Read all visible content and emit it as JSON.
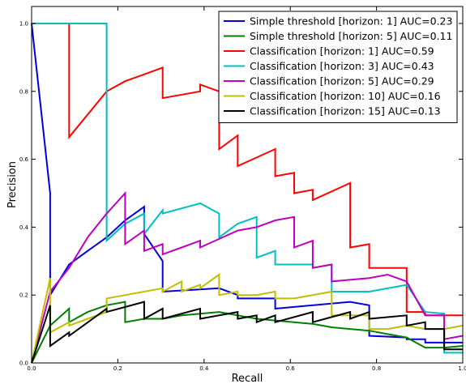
{
  "chart_data": {
    "type": "line",
    "title": "",
    "xlabel": "Recall",
    "ylabel": "Precision",
    "xlim": [
      0,
      1
    ],
    "ylim": [
      0,
      1.05
    ],
    "xticks": [
      "0.0",
      "0.2",
      "0.4",
      "0.6",
      "0.8",
      "1.0"
    ],
    "yticks": [
      "0.0",
      "0.2",
      "0.4",
      "0.6",
      "0.8",
      "1.0"
    ],
    "xtick_values": [
      0,
      0.2,
      0.4,
      0.6,
      0.8,
      1.0
    ],
    "ytick_values": [
      0,
      0.2,
      0.4,
      0.6,
      0.8,
      1.0
    ],
    "grid": false,
    "legend_position": "top-right",
    "series": [
      {
        "name": "Simple threshold [horizon: 1] AUC=0.23",
        "color": "#0000dd",
        "x": [
          0.0,
          0.043,
          0.043,
          0.087,
          0.13,
          0.174,
          0.217,
          0.261,
          0.261,
          0.304,
          0.304,
          0.435,
          0.478,
          0.478,
          0.565,
          0.565,
          0.739,
          0.783,
          0.783,
          0.87,
          0.87,
          0.913,
          0.913,
          1.0
        ],
        "y": [
          1.0,
          0.5,
          0.2,
          0.29,
          0.33,
          0.37,
          0.42,
          0.46,
          0.38,
          0.3,
          0.21,
          0.22,
          0.2,
          0.19,
          0.19,
          0.16,
          0.18,
          0.17,
          0.08,
          0.075,
          0.07,
          0.07,
          0.06,
          0.06
        ]
      },
      {
        "name": "Simple threshold [horizon: 5] AUC=0.11",
        "color": "#007f00",
        "x": [
          0.0,
          0.043,
          0.087,
          0.087,
          0.13,
          0.174,
          0.217,
          0.217,
          0.261,
          0.304,
          0.348,
          0.391,
          0.435,
          0.478,
          0.522,
          0.565,
          0.609,
          0.652,
          0.696,
          0.739,
          0.783,
          0.826,
          0.87,
          0.913,
          0.957,
          1.0
        ],
        "y": [
          0.0,
          0.11,
          0.16,
          0.12,
          0.15,
          0.17,
          0.18,
          0.12,
          0.13,
          0.13,
          0.14,
          0.145,
          0.15,
          0.14,
          0.13,
          0.125,
          0.12,
          0.115,
          0.105,
          0.1,
          0.095,
          0.085,
          0.075,
          0.045,
          0.045,
          0.05
        ]
      },
      {
        "name": "Classification [horizon: 1] AUC=0.59",
        "color": "#ff0000",
        "x": [
          0.0,
          0.087,
          0.087,
          0.174,
          0.217,
          0.261,
          0.304,
          0.304,
          0.391,
          0.391,
          0.435,
          0.435,
          0.478,
          0.478,
          0.565,
          0.565,
          0.609,
          0.609,
          0.652,
          0.652,
          0.739,
          0.739,
          0.783,
          0.783,
          0.87,
          0.87,
          0.913,
          0.913,
          1.0
        ],
        "y": [
          1.0,
          1.0,
          0.665,
          0.8,
          0.83,
          0.85,
          0.87,
          0.78,
          0.8,
          0.82,
          0.8,
          0.63,
          0.67,
          0.58,
          0.63,
          0.55,
          0.56,
          0.5,
          0.51,
          0.48,
          0.53,
          0.34,
          0.35,
          0.28,
          0.28,
          0.15,
          0.15,
          0.14,
          0.14
        ]
      },
      {
        "name": "Classification [horizon: 3] AUC=0.43",
        "color": "#00bfbf",
        "x": [
          0.0,
          0.174,
          0.174,
          0.217,
          0.261,
          0.261,
          0.304,
          0.304,
          0.391,
          0.435,
          0.435,
          0.478,
          0.522,
          0.522,
          0.565,
          0.565,
          0.652,
          0.652,
          0.696,
          0.696,
          0.783,
          0.826,
          0.87,
          0.913,
          0.957,
          0.957,
          1.0
        ],
        "y": [
          1.0,
          1.0,
          0.36,
          0.41,
          0.44,
          0.38,
          0.45,
          0.44,
          0.47,
          0.44,
          0.37,
          0.41,
          0.43,
          0.31,
          0.33,
          0.29,
          0.29,
          0.28,
          0.29,
          0.21,
          0.21,
          0.22,
          0.23,
          0.15,
          0.145,
          0.03,
          0.03
        ]
      },
      {
        "name": "Classification [horizon: 5] AUC=0.29",
        "color": "#bf00bf",
        "x": [
          0.0,
          0.043,
          0.087,
          0.13,
          0.174,
          0.217,
          0.217,
          0.261,
          0.261,
          0.304,
          0.304,
          0.348,
          0.391,
          0.391,
          0.478,
          0.522,
          0.565,
          0.609,
          0.609,
          0.652,
          0.652,
          0.696,
          0.696,
          0.783,
          0.826,
          0.87,
          0.913,
          0.957,
          0.957,
          1.0
        ],
        "y": [
          0.0,
          0.21,
          0.28,
          0.37,
          0.44,
          0.5,
          0.35,
          0.39,
          0.33,
          0.35,
          0.32,
          0.34,
          0.36,
          0.34,
          0.39,
          0.4,
          0.42,
          0.43,
          0.34,
          0.36,
          0.28,
          0.29,
          0.24,
          0.25,
          0.26,
          0.24,
          0.14,
          0.14,
          0.07,
          0.08
        ]
      },
      {
        "name": "Classification [horizon: 10] AUC=0.16",
        "color": "#bfbf00",
        "x": [
          0.0,
          0.043,
          0.043,
          0.087,
          0.087,
          0.13,
          0.174,
          0.174,
          0.304,
          0.304,
          0.348,
          0.348,
          0.391,
          0.391,
          0.435,
          0.435,
          0.478,
          0.478,
          0.522,
          0.565,
          0.565,
          0.609,
          0.652,
          0.696,
          0.696,
          0.783,
          0.783,
          0.826,
          0.87,
          0.913,
          0.957,
          1.0
        ],
        "y": [
          0.0,
          0.25,
          0.09,
          0.12,
          0.11,
          0.13,
          0.15,
          0.19,
          0.22,
          0.21,
          0.24,
          0.21,
          0.23,
          0.22,
          0.26,
          0.2,
          0.21,
          0.2,
          0.2,
          0.21,
          0.19,
          0.19,
          0.2,
          0.21,
          0.14,
          0.14,
          0.1,
          0.1,
          0.11,
          0.1,
          0.1,
          0.11
        ]
      },
      {
        "name": "Classification [horizon: 15] AUC=0.13",
        "color": "#000000",
        "x": [
          0.0,
          0.043,
          0.043,
          0.087,
          0.087,
          0.174,
          0.174,
          0.261,
          0.261,
          0.304,
          0.304,
          0.391,
          0.391,
          0.478,
          0.478,
          0.522,
          0.522,
          0.565,
          0.565,
          0.652,
          0.652,
          0.739,
          0.739,
          0.783,
          0.783,
          0.87,
          0.87,
          0.913,
          0.913,
          0.957,
          0.957,
          1.0
        ],
        "y": [
          0.0,
          0.17,
          0.05,
          0.09,
          0.08,
          0.16,
          0.15,
          0.18,
          0.13,
          0.16,
          0.13,
          0.16,
          0.13,
          0.15,
          0.13,
          0.14,
          0.12,
          0.14,
          0.12,
          0.15,
          0.12,
          0.15,
          0.13,
          0.15,
          0.13,
          0.14,
          0.11,
          0.12,
          0.1,
          0.1,
          0.04,
          0.04
        ]
      }
    ]
  }
}
